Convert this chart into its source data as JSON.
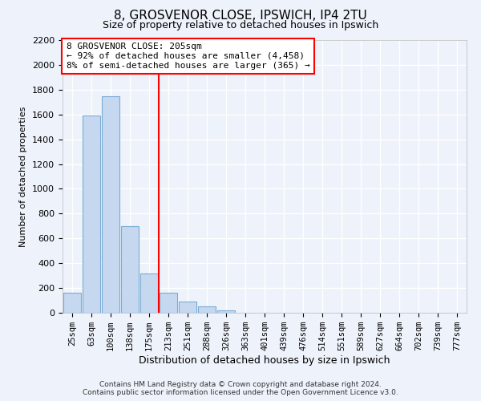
{
  "title": "8, GROSVENOR CLOSE, IPSWICH, IP4 2TU",
  "subtitle": "Size of property relative to detached houses in Ipswich",
  "xlabel": "Distribution of detached houses by size in Ipswich",
  "ylabel": "Number of detached properties",
  "bar_labels": [
    "25sqm",
    "63sqm",
    "100sqm",
    "138sqm",
    "175sqm",
    "213sqm",
    "251sqm",
    "288sqm",
    "326sqm",
    "363sqm",
    "401sqm",
    "439sqm",
    "476sqm",
    "514sqm",
    "551sqm",
    "589sqm",
    "627sqm",
    "664sqm",
    "702sqm",
    "739sqm",
    "777sqm"
  ],
  "bar_values": [
    160,
    1590,
    1750,
    700,
    320,
    160,
    90,
    50,
    20,
    0,
    0,
    0,
    0,
    0,
    0,
    0,
    0,
    0,
    0,
    0,
    0
  ],
  "bar_color": "#c5d8f0",
  "bar_edgecolor": "#7aadd4",
  "vline_color": "red",
  "vline_pos": 4.5,
  "annotation_title": "8 GROSVENOR CLOSE: 205sqm",
  "annotation_line1": "← 92% of detached houses are smaller (4,458)",
  "annotation_line2": "8% of semi-detached houses are larger (365) →",
  "annotation_box_color": "white",
  "annotation_box_edgecolor": "red",
  "ylim": [
    0,
    2200
  ],
  "yticks": [
    0,
    200,
    400,
    600,
    800,
    1000,
    1200,
    1400,
    1600,
    1800,
    2000,
    2200
  ],
  "footer1": "Contains HM Land Registry data © Crown copyright and database right 2024.",
  "footer2": "Contains public sector information licensed under the Open Government Licence v3.0.",
  "bg_color": "#eef2fa",
  "grid_color": "white"
}
